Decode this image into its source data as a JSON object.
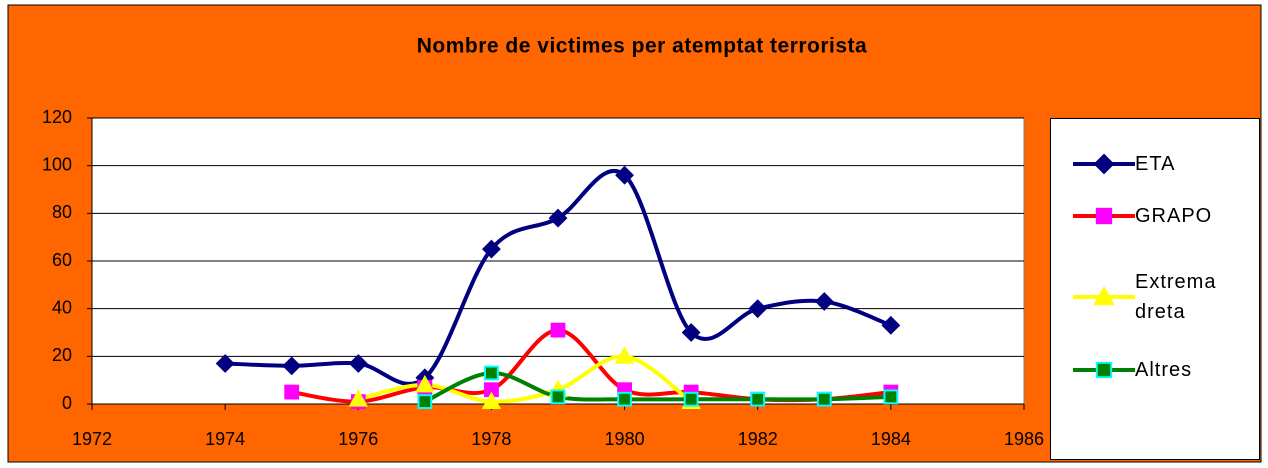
{
  "chart_data": {
    "type": "line",
    "title": "Nombre de victimes per atemptat terrorista",
    "x": [
      1974,
      1975,
      1976,
      1977,
      1978,
      1979,
      1980,
      1981,
      1982,
      1983,
      1984
    ],
    "series": [
      {
        "name": "ETA",
        "color": "#000080",
        "marker": "diamond",
        "marker_color": "#000080",
        "marker_edge": "#000080",
        "values": [
          17,
          16,
          17,
          11,
          65,
          78,
          96,
          30,
          40,
          43,
          33
        ]
      },
      {
        "name": "GRAPO",
        "color": "#ff0000",
        "marker": "square",
        "marker_color": "#ff00ff",
        "marker_edge": "#ff00ff",
        "values": [
          null,
          5,
          1,
          7,
          6,
          31,
          6,
          5,
          2,
          2,
          5
        ]
      },
      {
        "name": "Extrema dreta",
        "color": "#ffff00",
        "marker": "triangle",
        "marker_color": "#ffff00",
        "marker_edge": "#ffff00",
        "values": [
          null,
          null,
          2,
          8,
          1,
          6,
          20,
          1,
          null,
          null,
          null
        ]
      },
      {
        "name": "Altres",
        "color": "#008000",
        "marker": "square",
        "marker_color": "#008000",
        "marker_edge": "#00ffff",
        "values": [
          null,
          null,
          null,
          1,
          13,
          3,
          2,
          2,
          2,
          2,
          3
        ]
      }
    ],
    "xlim": [
      1972,
      1986
    ],
    "xticks": [
      1972,
      1974,
      1976,
      1978,
      1980,
      1982,
      1984,
      1986
    ],
    "ylim": [
      0,
      120
    ],
    "yticks": [
      0,
      20,
      40,
      60,
      80,
      100,
      120
    ],
    "grid": true,
    "smooth": true,
    "legend": "right"
  }
}
